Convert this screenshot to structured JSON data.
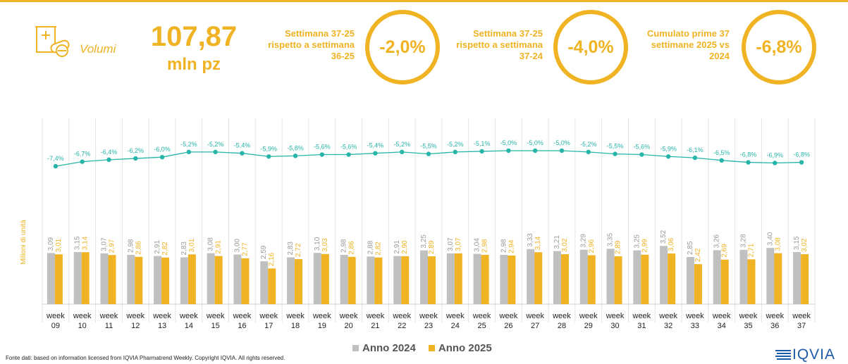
{
  "header": {
    "volumes_label": "Volumi",
    "volumes_value": "107,87",
    "volumes_unit": "mln pz",
    "comparisons": [
      {
        "text": "Settimana 37-25 rispetto a settimana 36-25",
        "value": "-2,0%"
      },
      {
        "text": "Settimana 37-25 rispetto a settimana 37-24",
        "value": "-4,0%"
      },
      {
        "text": "Cumulato prime 37 settimane 2025 vs 2024",
        "value": "-6,8%"
      }
    ]
  },
  "colors": {
    "accent": "#f0b323",
    "series_2024": "#c0c0c0",
    "series_2025": "#f0b323",
    "line": "#26b5a8"
  },
  "chart_data": {
    "type": "bar",
    "title": "",
    "xlabel": "",
    "ylabel": "Milioni di unità",
    "categories": [
      "week 09",
      "week 10",
      "week 11",
      "week 12",
      "week 13",
      "week 14",
      "week 15",
      "week 16",
      "week 17",
      "week 18",
      "week 19",
      "week 20",
      "week 21",
      "week 22",
      "week 23",
      "week 24",
      "week 25",
      "week 26",
      "week 27",
      "week 28",
      "week 29",
      "week 30",
      "week 31",
      "week 32",
      "week 33",
      "week 34",
      "week 35",
      "week 36",
      "week 37"
    ],
    "series": [
      {
        "name": "Anno 2024",
        "values": [
          3.09,
          3.15,
          3.07,
          2.98,
          2.91,
          2.83,
          3.08,
          3.0,
          2.59,
          2.83,
          3.1,
          2.98,
          2.88,
          2.91,
          3.25,
          3.07,
          3.04,
          2.98,
          3.33,
          3.21,
          3.29,
          3.35,
          3.25,
          3.52,
          2.85,
          3.26,
          3.28,
          3.4,
          3.15
        ],
        "labels": [
          "3,09",
          "3,15",
          "3,07",
          "2,98",
          "2,91",
          "2,83",
          "3,08",
          "3,00",
          "2,59",
          "2,83",
          "3,10",
          "2,98",
          "2,88",
          "2,91",
          "3,25",
          "3,07",
          "3,04",
          "2,98",
          "3,33",
          "3,21",
          "3,29",
          "3,35",
          "3,25",
          "3,52",
          "2,85",
          "3,26",
          "3,28",
          "3,40",
          "3,15"
        ]
      },
      {
        "name": "Anno 2025",
        "values": [
          3.01,
          3.14,
          2.97,
          2.86,
          2.82,
          3.01,
          2.91,
          2.77,
          2.16,
          2.72,
          3.03,
          2.86,
          2.82,
          2.9,
          2.89,
          3.07,
          2.98,
          2.94,
          3.14,
          3.02,
          2.96,
          2.89,
          2.99,
          3.06,
          2.42,
          2.69,
          2.71,
          3.08,
          3.02
        ],
        "labels": [
          "3,01",
          "3,14",
          "2,97",
          "2,86",
          "2,82",
          "3,01",
          "2,91",
          "2,77",
          "2,16",
          "2,72",
          "3,03",
          "2,86",
          "2,82",
          "2,90",
          "2,89",
          "3,07",
          "2,98",
          "2,94",
          "3,14",
          "3,02",
          "2,96",
          "2,89",
          "2,99",
          "3,06",
          "2,42",
          "2,69",
          "2,71",
          "3,08",
          "3,02"
        ]
      }
    ],
    "line": {
      "values": [
        -7.4,
        -6.7,
        -6.4,
        -6.2,
        -6.0,
        -5.2,
        -5.2,
        -5.4,
        -5.9,
        -5.8,
        -5.6,
        -5.6,
        -5.4,
        -5.2,
        -5.5,
        -5.2,
        -5.1,
        -5.0,
        -5.0,
        -5.0,
        -5.2,
        -5.5,
        -5.6,
        -5.9,
        -6.1,
        -6.5,
        -6.8,
        -6.9,
        -6.8
      ],
      "labels": [
        "-7,4%",
        "-6,7%",
        "-6,4%",
        "-6,2%",
        "-6,0%",
        "-5,2%",
        "-5,2%",
        "-5,4%",
        "-5,9%",
        "-5,8%",
        "-5,6%",
        "-5,6%",
        "-5,4%",
        "-5,2%",
        "-5,5%",
        "-5,2%",
        "-5,1%",
        "-5,0%",
        "-5,0%",
        "-5,0%",
        "-5,2%",
        "-5,5%",
        "-5,6%",
        "-5,9%",
        "-6,1%",
        "-6,5%",
        "-6,8%",
        "-6,9%",
        "-6,8%"
      ]
    },
    "legend": [
      "Anno 2024",
      "Anno 2025"
    ],
    "legend_position": "bottom"
  },
  "footer": {
    "source": "Fonte dati: based on information licensed from IQVIA Pharmatrend Weekly. Copyright IQVIA. All rights reserved.",
    "logo": "IQVIA"
  }
}
